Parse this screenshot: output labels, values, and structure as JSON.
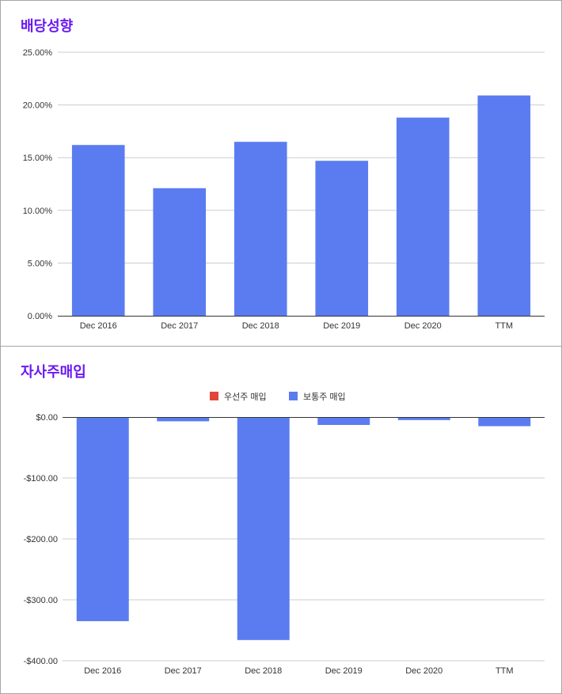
{
  "colors": {
    "bar": "#5b7cf0",
    "title": "#6a1af2",
    "preferred": "#e0473a",
    "grid": "#cccccc",
    "axis": "#333333"
  },
  "chart_data": [
    {
      "type": "bar",
      "title": "배당성향",
      "categories": [
        "Dec 2016",
        "Dec 2017",
        "Dec 2018",
        "Dec 2019",
        "Dec 2020",
        "TTM"
      ],
      "values": [
        16.2,
        12.1,
        16.5,
        14.7,
        18.8,
        20.9
      ],
      "unit": "%",
      "ylim": [
        0,
        25
      ],
      "yticks": [
        "0.00%",
        "5.00%",
        "10.00%",
        "15.00%",
        "20.00%",
        "25.00%"
      ],
      "grid": true,
      "legend": null
    },
    {
      "type": "bar",
      "title": "자사주매입",
      "categories": [
        "Dec 2016",
        "Dec 2017",
        "Dec 2018",
        "Dec 2019",
        "Dec 2020",
        "TTM"
      ],
      "series": [
        {
          "name": "우선주 매입",
          "values": [
            0,
            0,
            0,
            0,
            0,
            0
          ]
        },
        {
          "name": "보통주 매입",
          "values": [
            -335,
            -7,
            -366,
            -13,
            -5,
            -15
          ]
        }
      ],
      "ylim": [
        -400,
        0
      ],
      "yticks": [
        "$0.00",
        "-$100.00",
        "-$200.00",
        "-$300.00",
        "-$400.00"
      ],
      "grid": true,
      "legend": "top-center"
    }
  ]
}
